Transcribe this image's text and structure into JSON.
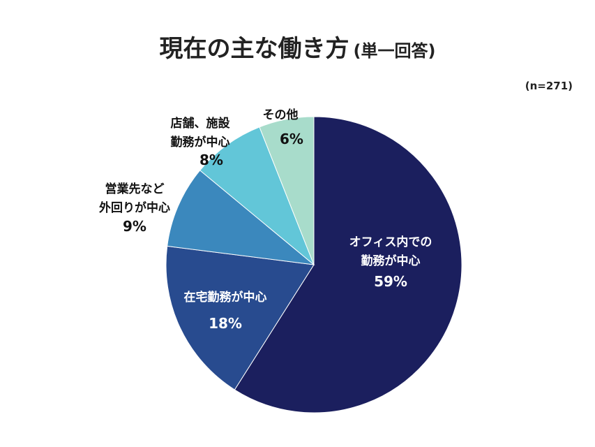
{
  "chart_data": {
    "type": "pie",
    "title": "現在の主な働き方",
    "subtitle": "(単一回答)",
    "sample_size": "(n=271)",
    "start_angle_deg": 0,
    "direction": "clockwise",
    "slices": [
      {
        "label": [
          "オフィス内での",
          "勤務が中心"
        ],
        "value": 59,
        "display": "59%",
        "color": "#1b1f5e",
        "text_color": "#ffffff"
      },
      {
        "label": [
          "在宅勤務が中心"
        ],
        "value": 18,
        "display": "18%",
        "color": "#284b8f",
        "text_color": "#ffffff"
      },
      {
        "label": [
          "営業先など",
          "外回りが中心"
        ],
        "value": 9,
        "display": "9%",
        "color": "#3b88bd",
        "text_color": "#111111"
      },
      {
        "label": [
          "店舗、施設",
          "勤務が中心"
        ],
        "value": 8,
        "display": "8%",
        "color": "#62c6d8",
        "text_color": "#111111"
      },
      {
        "label": [
          "その他"
        ],
        "value": 6,
        "display": "6%",
        "color": "#a8dccb",
        "text_color": "#111111"
      }
    ]
  }
}
